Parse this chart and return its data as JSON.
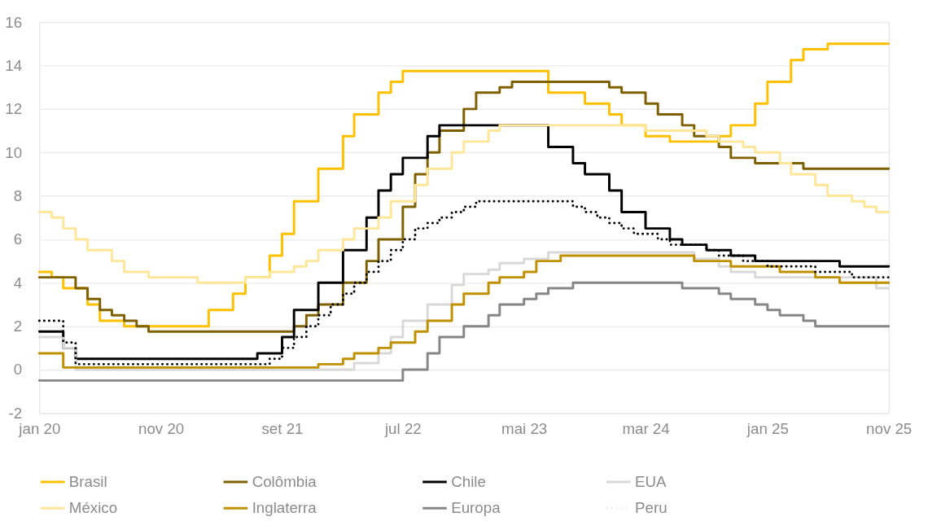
{
  "chart_data": {
    "type": "step",
    "xlim": [
      "2020-01",
      "2025-11"
    ],
    "xticks": [
      {
        "value": "2020-01",
        "label": "jan 20"
      },
      {
        "value": "2020-11",
        "label": "nov 20"
      },
      {
        "value": "2021-09",
        "label": "set 21"
      },
      {
        "value": "2022-07",
        "label": "jul 22"
      },
      {
        "value": "2023-05",
        "label": "mai 23"
      },
      {
        "value": "2024-03",
        "label": "mar 24"
      },
      {
        "value": "2025-01",
        "label": "jan 25"
      },
      {
        "value": "2025-11",
        "label": "nov 25"
      }
    ],
    "ylim": [
      -2,
      16
    ],
    "yticks": [
      -2,
      0,
      2,
      4,
      6,
      8,
      10,
      12,
      14,
      16
    ],
    "grid": "y",
    "legend": "bottom",
    "line_style": "solid",
    "series": [
      {
        "name": "Brasil",
        "color": "#ffc000",
        "x": [
          "2020-01",
          "2020-02",
          "2020-03",
          "2020-05",
          "2020-06",
          "2020-08",
          "2021-03",
          "2021-05",
          "2021-06",
          "2021-08",
          "2021-09",
          "2021-10",
          "2021-12",
          "2022-02",
          "2022-03",
          "2022-05",
          "2022-06",
          "2022-07",
          "2023-07",
          "2023-10",
          "2023-12",
          "2024-01",
          "2024-03",
          "2024-05",
          "2024-09",
          "2024-10",
          "2024-12",
          "2025-01",
          "2025-03",
          "2025-04",
          "2025-06",
          "2025-11"
        ],
        "values": [
          4.5,
          4.25,
          3.75,
          3.0,
          2.25,
          2.0,
          2.75,
          3.5,
          4.25,
          5.25,
          6.25,
          7.75,
          9.25,
          10.75,
          11.75,
          12.75,
          13.25,
          13.75,
          12.75,
          12.25,
          11.75,
          11.25,
          10.75,
          10.5,
          10.75,
          11.25,
          12.25,
          13.25,
          14.25,
          14.75,
          15,
          15
        ]
      },
      {
        "name": "Colômbia",
        "color": "#7f6000",
        "x": [
          "2020-01",
          "2020-04",
          "2020-05",
          "2020-06",
          "2020-07",
          "2020-08",
          "2020-09",
          "2020-10",
          "2021-10",
          "2021-11",
          "2021-12",
          "2022-02",
          "2022-04",
          "2022-05",
          "2022-07",
          "2022-08",
          "2022-09",
          "2022-10",
          "2022-12",
          "2023-01",
          "2023-03",
          "2023-04",
          "2023-12",
          "2024-01",
          "2024-03",
          "2024-04",
          "2024-06",
          "2024-07",
          "2024-09",
          "2024-10",
          "2024-12",
          "2025-04",
          "2025-11"
        ],
        "values": [
          4.25,
          3.75,
          3.25,
          2.75,
          2.5,
          2.25,
          2.0,
          1.75,
          2.0,
          2.5,
          3.0,
          4.0,
          5.0,
          6.0,
          7.5,
          9.0,
          10.0,
          11.0,
          12.0,
          12.75,
          13.0,
          13.25,
          13.0,
          12.75,
          12.25,
          11.75,
          11.25,
          10.75,
          10.25,
          9.75,
          9.5,
          9.25,
          9.25
        ]
      },
      {
        "name": "Chile",
        "color": "#000000",
        "x": [
          "2020-01",
          "2020-03",
          "2020-04",
          "2021-07",
          "2021-09",
          "2021-10",
          "2021-12",
          "2022-02",
          "2022-04",
          "2022-05",
          "2022-06",
          "2022-07",
          "2022-09",
          "2022-10",
          "2023-07",
          "2023-09",
          "2023-10",
          "2023-12",
          "2024-01",
          "2024-03",
          "2024-05",
          "2024-06",
          "2024-08",
          "2024-10",
          "2024-12",
          "2025-07",
          "2025-11"
        ],
        "values": [
          1.75,
          1.0,
          0.5,
          0.75,
          1.5,
          2.75,
          4.0,
          5.5,
          7.0,
          8.25,
          9.0,
          9.75,
          10.75,
          11.25,
          10.25,
          9.5,
          9.0,
          8.25,
          7.25,
          6.5,
          6.0,
          5.75,
          5.5,
          5.25,
          5.0,
          4.75,
          4.75
        ]
      },
      {
        "name": "EUA",
        "color": "#d9d9d9",
        "x": [
          "2020-01",
          "2020-03",
          "2020-04",
          "2022-03",
          "2022-05",
          "2022-06",
          "2022-07",
          "2022-09",
          "2022-11",
          "2022-12",
          "2023-02",
          "2023-03",
          "2023-05",
          "2023-07",
          "2024-07",
          "2024-09",
          "2024-10",
          "2024-12",
          "2025-10",
          "2025-11"
        ],
        "values": [
          1.5,
          1.0,
          0.0,
          0.3,
          0.75,
          1.5,
          2.25,
          3.0,
          3.9,
          4.4,
          4.6,
          4.9,
          5.1,
          5.4,
          5.1,
          4.75,
          4.5,
          4.25,
          3.75,
          3.75
        ]
      },
      {
        "name": "México",
        "color": "#ffe699",
        "x": [
          "2020-01",
          "2020-02",
          "2020-03",
          "2020-04",
          "2020-05",
          "2020-07",
          "2020-08",
          "2020-10",
          "2021-02",
          "2021-06",
          "2021-08",
          "2021-10",
          "2021-11",
          "2021-12",
          "2022-02",
          "2022-03",
          "2022-05",
          "2022-06",
          "2022-08",
          "2022-09",
          "2022-11",
          "2022-12",
          "2023-02",
          "2023-03",
          "2024-03",
          "2024-08",
          "2024-09",
          "2024-11",
          "2024-12",
          "2025-02",
          "2025-03",
          "2025-05",
          "2025-06",
          "2025-08",
          "2025-09",
          "2025-10",
          "2025-11"
        ],
        "values": [
          7.25,
          7.0,
          6.5,
          6.0,
          5.5,
          5.0,
          4.5,
          4.25,
          4.0,
          4.25,
          4.5,
          4.75,
          5.0,
          5.5,
          6.0,
          6.5,
          7.0,
          7.75,
          8.5,
          9.25,
          10.0,
          10.5,
          11.0,
          11.25,
          11.0,
          10.75,
          10.5,
          10.25,
          10.0,
          9.5,
          9.0,
          8.5,
          8.0,
          7.75,
          7.5,
          7.25,
          7.25
        ]
      },
      {
        "name": "Inglaterra",
        "color": "#bf9000",
        "x": [
          "2020-01",
          "2020-03",
          "2021-12",
          "2022-02",
          "2022-03",
          "2022-05",
          "2022-06",
          "2022-08",
          "2022-09",
          "2022-11",
          "2022-12",
          "2023-02",
          "2023-03",
          "2023-05",
          "2023-06",
          "2023-08",
          "2024-07",
          "2024-10",
          "2025-02",
          "2025-05",
          "2025-07",
          "2025-11"
        ],
        "values": [
          0.75,
          0.1,
          0.25,
          0.5,
          0.75,
          1.0,
          1.25,
          1.75,
          2.25,
          3.0,
          3.5,
          4.0,
          4.25,
          4.5,
          5.0,
          5.25,
          5.0,
          4.75,
          4.5,
          4.25,
          4.0,
          4.0
        ]
      },
      {
        "name": "Europa",
        "color": "#868686",
        "x": [
          "2020-01",
          "2022-07",
          "2022-09",
          "2022-10",
          "2022-12",
          "2023-02",
          "2023-03",
          "2023-05",
          "2023-06",
          "2023-07",
          "2023-09",
          "2024-06",
          "2024-09",
          "2024-10",
          "2024-12",
          "2025-01",
          "2025-02",
          "2025-04",
          "2025-05",
          "2025-11"
        ],
        "values": [
          -0.5,
          0.0,
          0.75,
          1.5,
          2.0,
          2.5,
          3.0,
          3.25,
          3.5,
          3.75,
          4.0,
          3.75,
          3.5,
          3.25,
          3.0,
          2.75,
          2.5,
          2.25,
          2.0,
          2.0
        ]
      },
      {
        "name": "Peru",
        "color": "#000000",
        "line_style": "dotted",
        "x": [
          "2020-01",
          "2020-03",
          "2020-04",
          "2021-08",
          "2021-09",
          "2021-10",
          "2021-11",
          "2021-12",
          "2022-01",
          "2022-02",
          "2022-03",
          "2022-04",
          "2022-05",
          "2022-06",
          "2022-07",
          "2022-08",
          "2022-09",
          "2022-10",
          "2022-11",
          "2022-12",
          "2023-01",
          "2023-09",
          "2023-10",
          "2023-11",
          "2023-12",
          "2024-01",
          "2024-02",
          "2024-04",
          "2024-05",
          "2024-08",
          "2024-09",
          "2024-11",
          "2025-01",
          "2025-05",
          "2025-08",
          "2025-11"
        ],
        "values": [
          2.25,
          1.25,
          0.25,
          0.5,
          1.0,
          1.5,
          2.0,
          2.5,
          3.0,
          3.5,
          4.0,
          4.5,
          5.0,
          5.5,
          6.0,
          6.5,
          6.75,
          7.0,
          7.25,
          7.5,
          7.75,
          7.5,
          7.25,
          7.0,
          6.75,
          6.5,
          6.25,
          6.0,
          5.75,
          5.5,
          5.25,
          5.0,
          4.75,
          4.5,
          4.25,
          4.25
        ]
      }
    ]
  }
}
